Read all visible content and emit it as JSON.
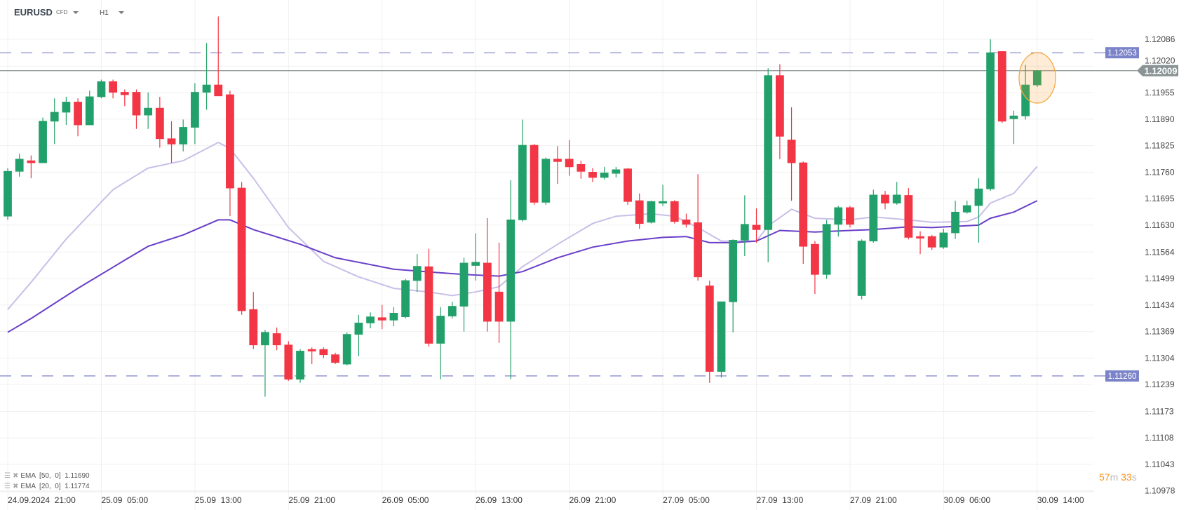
{
  "header": {
    "symbol": "EURUSD",
    "instrument_type": "CFD",
    "timeframe": "H1"
  },
  "colors": {
    "up": "#26a269",
    "up_body": "#22a06b",
    "down": "#f23645",
    "ema20": "#c9bfe8",
    "ema50": "#6a3fc8",
    "level": "#7b83c9",
    "current": "#8a9494",
    "highlight": "#f7931e"
  },
  "price_axis": {
    "ticks": [
      "1.12086",
      "1.12020",
      "1.11955",
      "1.11890",
      "1.11825",
      "1.11760",
      "1.11695",
      "1.11630",
      "1.11564",
      "1.11499",
      "1.11434",
      "1.11369",
      "1.11304",
      "1.11239",
      "1.11173",
      "1.11108",
      "1.11043",
      "1.10978"
    ]
  },
  "time_axis": {
    "labels": [
      {
        "i": 0,
        "t": "24.09.2024  21:00"
      },
      {
        "i": 8,
        "t": "25.09  05:00"
      },
      {
        "i": 16,
        "t": "25.09  13:00"
      },
      {
        "i": 24,
        "t": "25.09  21:00"
      },
      {
        "i": 32,
        "t": "26.09  05:00"
      },
      {
        "i": 40,
        "t": "26.09  13:00"
      },
      {
        "i": 48,
        "t": "26.09  21:00"
      },
      {
        "i": 56,
        "t": "27.09  05:00"
      },
      {
        "i": 64,
        "t": "27.09  13:00"
      },
      {
        "i": 72,
        "t": "27.09  21:00"
      },
      {
        "i": 80,
        "t": "30.09  06:00"
      },
      {
        "i": 88,
        "t": "30.09  14:00"
      }
    ]
  },
  "levels": {
    "upper": "1.12053",
    "lower": "1.11260",
    "current": "1.12009"
  },
  "indicators": [
    {
      "label": "EMA  [50,  0]  1.11690"
    },
    {
      "label": "EMA  [20,  0]  1.11774"
    }
  ],
  "timer": {
    "minutes": "57",
    "m": "m",
    "seconds": "33",
    "s": "s"
  },
  "chart_data": {
    "type": "candlestick",
    "ohlc": [
      [
        1.11652,
        1.1177,
        1.11643,
        1.11762
      ],
      [
        1.11762,
        1.11805,
        1.11749,
        1.11792
      ],
      [
        1.11788,
        1.11801,
        1.11745,
        1.11783
      ],
      [
        1.11783,
        1.11894,
        1.11783,
        1.11885
      ],
      [
        1.11885,
        1.11941,
        1.11829,
        1.11907
      ],
      [
        1.11907,
        1.11945,
        1.11876,
        1.11932
      ],
      [
        1.11932,
        1.11941,
        1.11848,
        1.11876
      ],
      [
        1.11876,
        1.1196,
        1.11876,
        1.11945
      ],
      [
        1.11945,
        1.11987,
        1.11941,
        1.11982
      ],
      [
        1.11982,
        1.11987,
        1.11941,
        1.11956
      ],
      [
        1.11956,
        1.11963,
        1.11922,
        1.1195
      ],
      [
        1.11956,
        1.11963,
        1.11866,
        1.119
      ],
      [
        1.119,
        1.11956,
        1.11866,
        1.11917
      ],
      [
        1.11917,
        1.11945,
        1.1182,
        1.11842
      ],
      [
        1.11842,
        1.11885,
        1.11783,
        1.11829
      ],
      [
        1.11829,
        1.11889,
        1.11811,
        1.1187
      ],
      [
        1.1187,
        1.11978,
        1.11829,
        1.11956
      ],
      [
        1.11956,
        1.12077,
        1.11913,
        1.11974
      ],
      [
        1.11974,
        1.12142,
        1.11947,
        1.11947
      ],
      [
        1.1195,
        1.1196,
        1.11652,
        1.11721
      ],
      [
        1.11721,
        1.11736,
        1.1141,
        1.1142
      ],
      [
        1.11423,
        1.11466,
        1.11326,
        1.11336
      ],
      [
        1.11336,
        1.11373,
        1.11209,
        1.11367
      ],
      [
        1.11364,
        1.11379,
        1.11323,
        1.11336
      ],
      [
        1.11336,
        1.11345,
        1.11248,
        1.11252
      ],
      [
        1.11252,
        1.11326,
        1.11243,
        1.11321
      ],
      [
        1.11325,
        1.1133,
        1.11289,
        1.11321
      ],
      [
        1.11325,
        1.1133,
        1.11304,
        1.11312
      ],
      [
        1.11312,
        1.11317,
        1.11289,
        1.11293
      ],
      [
        1.11289,
        1.11367,
        1.11286,
        1.11362
      ],
      [
        1.11362,
        1.1141,
        1.11308,
        1.1139
      ],
      [
        1.1139,
        1.11416,
        1.11377,
        1.11405
      ],
      [
        1.11403,
        1.11434,
        1.11375,
        1.11397
      ],
      [
        1.11397,
        1.11429,
        1.11382,
        1.11414
      ],
      [
        1.11405,
        1.11498,
        1.11401,
        1.11494
      ],
      [
        1.11494,
        1.11559,
        1.11466,
        1.11529
      ],
      [
        1.11528,
        1.11572,
        1.11332,
        1.1134
      ],
      [
        1.1134,
        1.11429,
        1.11252,
        1.11407
      ],
      [
        1.11407,
        1.11442,
        1.11401,
        1.11431
      ],
      [
        1.11431,
        1.1155,
        1.11369,
        1.11537
      ],
      [
        1.11531,
        1.1161,
        1.11494,
        1.11539
      ],
      [
        1.11537,
        1.11647,
        1.11369,
        1.11394
      ],
      [
        1.11466,
        1.11587,
        1.11341,
        1.11394
      ],
      [
        1.11394,
        1.1174,
        1.11252,
        1.11643
      ],
      [
        1.11643,
        1.11889,
        1.11639,
        1.11826
      ],
      [
        1.11826,
        1.11829,
        1.1168,
        1.11686
      ],
      [
        1.11686,
        1.11796,
        1.1168,
        1.11792
      ],
      [
        1.11792,
        1.11824,
        1.11731,
        1.11786
      ],
      [
        1.11792,
        1.11839,
        1.11751,
        1.11773
      ],
      [
        1.11779,
        1.11788,
        1.11744,
        1.11762
      ],
      [
        1.1176,
        1.1177,
        1.11736,
        1.11747
      ],
      [
        1.11747,
        1.11773,
        1.11742,
        1.11758
      ],
      [
        1.11757,
        1.11773,
        1.11747,
        1.11766
      ],
      [
        1.11768,
        1.1177,
        1.1168,
        1.11688
      ],
      [
        1.1169,
        1.11708,
        1.11621,
        1.11634
      ],
      [
        1.11637,
        1.1169,
        1.11634,
        1.11688
      ],
      [
        1.11684,
        1.11729,
        1.11677,
        1.11688
      ],
      [
        1.11688,
        1.11691,
        1.11634,
        1.11639
      ],
      [
        1.11643,
        1.11658,
        1.11624,
        1.11632
      ],
      [
        1.11636,
        1.11755,
        1.11494,
        1.11503
      ],
      [
        1.11481,
        1.11494,
        1.11243,
        1.11271
      ],
      [
        1.11271,
        1.11442,
        1.11256,
        1.11442
      ],
      [
        1.11442,
        1.11595,
        1.11367,
        1.11593
      ],
      [
        1.11593,
        1.11703,
        1.11554,
        1.11632
      ],
      [
        1.1163,
        1.11671,
        1.11587,
        1.11619
      ],
      [
        1.11619,
        1.12015,
        1.11539,
        1.11997
      ],
      [
        1.11997,
        1.12025,
        1.11792,
        1.11848
      ],
      [
        1.11839,
        1.11919,
        1.1169,
        1.11783
      ],
      [
        1.11783,
        1.11786,
        1.11535,
        1.11578
      ],
      [
        1.11583,
        1.11591,
        1.11461,
        1.11509
      ],
      [
        1.11509,
        1.11643,
        1.11498,
        1.11632
      ],
      [
        1.11632,
        1.11677,
        1.11602,
        1.11673
      ],
      [
        1.11673,
        1.11677,
        1.11624,
        1.11632
      ],
      [
        1.11457,
        1.11595,
        1.11448,
        1.11591
      ],
      [
        1.11591,
        1.11717,
        1.11587,
        1.11704
      ],
      [
        1.11704,
        1.11714,
        1.11669,
        1.11684
      ],
      [
        1.11684,
        1.11736,
        1.1168,
        1.11704
      ],
      [
        1.11703,
        1.11721,
        1.11595,
        1.116
      ],
      [
        1.11602,
        1.11615,
        1.11559,
        1.11598
      ],
      [
        1.11602,
        1.11606,
        1.11569,
        1.11576
      ],
      [
        1.11576,
        1.11621,
        1.11572,
        1.11611
      ],
      [
        1.11611,
        1.1169,
        1.11596,
        1.11662
      ],
      [
        1.11662,
        1.1169,
        1.11658,
        1.11678
      ],
      [
        1.11678,
        1.11745,
        1.11587,
        1.11719
      ],
      [
        1.11719,
        1.12086,
        1.11714,
        1.12053
      ],
      [
        1.12056,
        1.12056,
        1.11881,
        1.11885
      ],
      [
        1.11891,
        1.11911,
        1.11829,
        1.11898
      ],
      [
        1.11898,
        1.12023,
        1.11889,
        1.11974
      ],
      [
        1.11974,
        1.1201,
        1.11969,
        1.12009
      ]
    ],
    "ema20": [
      [
        0,
        1.11423
      ],
      [
        2,
        1.1149
      ],
      [
        5,
        1.11596
      ],
      [
        9,
        1.11717
      ],
      [
        12,
        1.1177
      ],
      [
        15,
        1.11788
      ],
      [
        17,
        1.11818
      ],
      [
        18,
        1.11833
      ],
      [
        19,
        1.11818
      ],
      [
        21,
        1.11745
      ],
      [
        24,
        1.11624
      ],
      [
        27,
        1.11541
      ],
      [
        30,
        1.11503
      ],
      [
        33,
        1.11475
      ],
      [
        36,
        1.11466
      ],
      [
        38,
        1.11457
      ],
      [
        40,
        1.11466
      ],
      [
        42,
        1.11479
      ],
      [
        44,
        1.11528
      ],
      [
        47,
        1.11583
      ],
      [
        50,
        1.11634
      ],
      [
        52,
        1.11652
      ],
      [
        55,
        1.11658
      ],
      [
        57,
        1.11652
      ],
      [
        59,
        1.11624
      ],
      [
        61,
        1.11591
      ],
      [
        64,
        1.11591
      ],
      [
        65,
        1.11628
      ],
      [
        67,
        1.11669
      ],
      [
        69,
        1.11647
      ],
      [
        72,
        1.11643
      ],
      [
        74,
        1.1165
      ],
      [
        77,
        1.11643
      ],
      [
        79,
        1.11637
      ],
      [
        82,
        1.11639
      ],
      [
        83,
        1.1165
      ],
      [
        84,
        1.11684
      ],
      [
        86,
        1.11708
      ],
      [
        88,
        1.11774
      ]
    ],
    "ema50": [
      [
        0,
        1.11367
      ],
      [
        2,
        1.11401
      ],
      [
        6,
        1.11475
      ],
      [
        10,
        1.11544
      ],
      [
        12,
        1.11578
      ],
      [
        15,
        1.11606
      ],
      [
        18,
        1.11643
      ],
      [
        19,
        1.11643
      ],
      [
        21,
        1.11619
      ],
      [
        25,
        1.11583
      ],
      [
        28,
        1.1155
      ],
      [
        33,
        1.11522
      ],
      [
        37,
        1.11513
      ],
      [
        39,
        1.11509
      ],
      [
        42,
        1.11505
      ],
      [
        44,
        1.11516
      ],
      [
        47,
        1.1155
      ],
      [
        50,
        1.11576
      ],
      [
        53,
        1.11591
      ],
      [
        56,
        1.116
      ],
      [
        58,
        1.11602
      ],
      [
        60,
        1.11587
      ],
      [
        62,
        1.11587
      ],
      [
        64,
        1.11591
      ],
      [
        66,
        1.11617
      ],
      [
        69,
        1.11613
      ],
      [
        72,
        1.11617
      ],
      [
        74,
        1.11619
      ],
      [
        77,
        1.11626
      ],
      [
        79,
        1.11624
      ],
      [
        83,
        1.1163
      ],
      [
        84,
        1.11647
      ],
      [
        86,
        1.11662
      ],
      [
        88,
        1.1169
      ]
    ],
    "ylim": [
      1.10978,
      1.12086
    ]
  }
}
